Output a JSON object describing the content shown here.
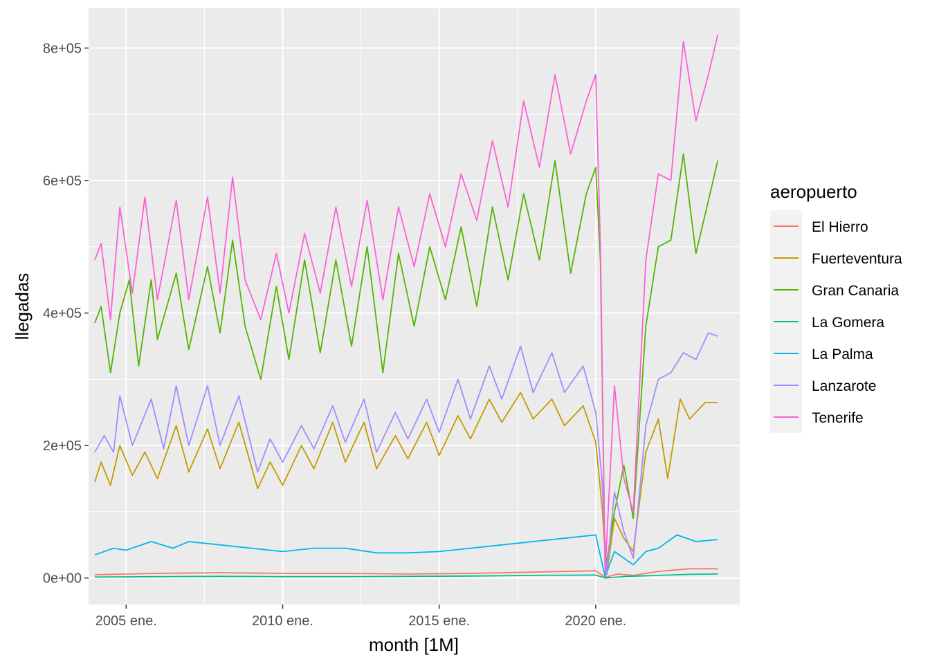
{
  "chart_data": {
    "type": "line",
    "title": "",
    "xlabel": "month [1M]",
    "ylabel": "llegadas",
    "xlim": [
      2003.8,
      2024.6
    ],
    "ylim": [
      -40000,
      860000
    ],
    "x_ticks": [
      {
        "value": 2005.0,
        "label": "2005 ene."
      },
      {
        "value": 2010.0,
        "label": "2010 ene."
      },
      {
        "value": 2015.0,
        "label": "2015 ene."
      },
      {
        "value": 2020.0,
        "label": "2020 ene."
      }
    ],
    "y_ticks": [
      {
        "value": 0,
        "label": "0e+00"
      },
      {
        "value": 200000,
        "label": "2e+05"
      },
      {
        "value": 400000,
        "label": "4e+05"
      },
      {
        "value": 600000,
        "label": "6e+05"
      },
      {
        "value": 800000,
        "label": "8e+05"
      }
    ],
    "legend": {
      "title": "aeropuerto",
      "position": "right"
    },
    "series": [
      {
        "name": "El Hierro",
        "color": "#F8766D",
        "points": [
          [
            2004.0,
            5000
          ],
          [
            2006.0,
            7000
          ],
          [
            2008.0,
            8000
          ],
          [
            2010.0,
            7000
          ],
          [
            2012.0,
            7000
          ],
          [
            2014.0,
            6000
          ],
          [
            2016.0,
            7000
          ],
          [
            2018.0,
            9000
          ],
          [
            2020.0,
            11000
          ],
          [
            2020.3,
            1000
          ],
          [
            2020.7,
            6000
          ],
          [
            2021.2,
            4000
          ],
          [
            2022.0,
            10000
          ],
          [
            2023.0,
            14000
          ],
          [
            2023.9,
            14000
          ]
        ]
      },
      {
        "name": "Fuerteventura",
        "color": "#C49A00",
        "points": [
          [
            2004.0,
            145000
          ],
          [
            2004.2,
            175000
          ],
          [
            2004.5,
            140000
          ],
          [
            2004.8,
            200000
          ],
          [
            2005.2,
            155000
          ],
          [
            2005.6,
            190000
          ],
          [
            2006.0,
            150000
          ],
          [
            2006.6,
            230000
          ],
          [
            2007.0,
            160000
          ],
          [
            2007.6,
            225000
          ],
          [
            2008.0,
            165000
          ],
          [
            2008.6,
            235000
          ],
          [
            2009.2,
            135000
          ],
          [
            2009.6,
            175000
          ],
          [
            2010.0,
            140000
          ],
          [
            2010.6,
            200000
          ],
          [
            2011.0,
            165000
          ],
          [
            2011.6,
            235000
          ],
          [
            2012.0,
            175000
          ],
          [
            2012.6,
            235000
          ],
          [
            2013.0,
            165000
          ],
          [
            2013.6,
            215000
          ],
          [
            2014.0,
            180000
          ],
          [
            2014.6,
            235000
          ],
          [
            2015.0,
            185000
          ],
          [
            2015.6,
            245000
          ],
          [
            2016.0,
            210000
          ],
          [
            2016.6,
            270000
          ],
          [
            2017.0,
            235000
          ],
          [
            2017.6,
            280000
          ],
          [
            2018.0,
            240000
          ],
          [
            2018.6,
            270000
          ],
          [
            2019.0,
            230000
          ],
          [
            2019.6,
            260000
          ],
          [
            2020.0,
            205000
          ],
          [
            2020.2,
            110000
          ],
          [
            2020.35,
            5000
          ],
          [
            2020.6,
            90000
          ],
          [
            2020.9,
            60000
          ],
          [
            2021.2,
            40000
          ],
          [
            2021.6,
            190000
          ],
          [
            2022.0,
            240000
          ],
          [
            2022.3,
            150000
          ],
          [
            2022.7,
            270000
          ],
          [
            2023.0,
            240000
          ],
          [
            2023.5,
            265000
          ],
          [
            2023.9,
            265000
          ]
        ]
      },
      {
        "name": "Gran Canaria",
        "color": "#53B400",
        "points": [
          [
            2004.0,
            385000
          ],
          [
            2004.2,
            410000
          ],
          [
            2004.5,
            310000
          ],
          [
            2004.8,
            400000
          ],
          [
            2005.1,
            450000
          ],
          [
            2005.4,
            320000
          ],
          [
            2005.8,
            450000
          ],
          [
            2006.0,
            360000
          ],
          [
            2006.6,
            460000
          ],
          [
            2007.0,
            345000
          ],
          [
            2007.6,
            470000
          ],
          [
            2008.0,
            370000
          ],
          [
            2008.4,
            510000
          ],
          [
            2008.8,
            380000
          ],
          [
            2009.3,
            300000
          ],
          [
            2009.8,
            440000
          ],
          [
            2010.2,
            330000
          ],
          [
            2010.7,
            480000
          ],
          [
            2011.2,
            340000
          ],
          [
            2011.7,
            480000
          ],
          [
            2012.2,
            350000
          ],
          [
            2012.7,
            500000
          ],
          [
            2013.2,
            310000
          ],
          [
            2013.7,
            490000
          ],
          [
            2014.2,
            380000
          ],
          [
            2014.7,
            500000
          ],
          [
            2015.2,
            420000
          ],
          [
            2015.7,
            530000
          ],
          [
            2016.2,
            410000
          ],
          [
            2016.7,
            560000
          ],
          [
            2017.2,
            450000
          ],
          [
            2017.7,
            580000
          ],
          [
            2018.2,
            480000
          ],
          [
            2018.7,
            630000
          ],
          [
            2019.2,
            460000
          ],
          [
            2019.7,
            580000
          ],
          [
            2020.0,
            620000
          ],
          [
            2020.15,
            480000
          ],
          [
            2020.3,
            10000
          ],
          [
            2020.6,
            100000
          ],
          [
            2020.9,
            170000
          ],
          [
            2021.2,
            90000
          ],
          [
            2021.6,
            380000
          ],
          [
            2022.0,
            500000
          ],
          [
            2022.4,
            510000
          ],
          [
            2022.8,
            640000
          ],
          [
            2023.2,
            490000
          ],
          [
            2023.6,
            570000
          ],
          [
            2023.9,
            630000
          ]
        ]
      },
      {
        "name": "La Gomera",
        "color": "#00C094",
        "points": [
          [
            2004.0,
            1500
          ],
          [
            2006.0,
            2000
          ],
          [
            2008.0,
            2500
          ],
          [
            2010.0,
            2000
          ],
          [
            2012.0,
            2000
          ],
          [
            2014.0,
            2500
          ],
          [
            2016.0,
            3000
          ],
          [
            2018.0,
            4000
          ],
          [
            2020.0,
            4500
          ],
          [
            2020.3,
            0
          ],
          [
            2021.0,
            2500
          ],
          [
            2022.0,
            4000
          ],
          [
            2023.0,
            5500
          ],
          [
            2023.9,
            6000
          ]
        ]
      },
      {
        "name": "La Palma",
        "color": "#00B6EB",
        "points": [
          [
            2004.0,
            35000
          ],
          [
            2004.6,
            45000
          ],
          [
            2005.0,
            42000
          ],
          [
            2005.8,
            55000
          ],
          [
            2006.5,
            45000
          ],
          [
            2007.0,
            55000
          ],
          [
            2008.0,
            50000
          ],
          [
            2009.0,
            45000
          ],
          [
            2010.0,
            40000
          ],
          [
            2011.0,
            45000
          ],
          [
            2012.0,
            45000
          ],
          [
            2013.0,
            38000
          ],
          [
            2014.0,
            38000
          ],
          [
            2015.0,
            40000
          ],
          [
            2016.0,
            45000
          ],
          [
            2017.0,
            50000
          ],
          [
            2018.0,
            55000
          ],
          [
            2019.0,
            60000
          ],
          [
            2020.0,
            65000
          ],
          [
            2020.3,
            2000
          ],
          [
            2020.6,
            40000
          ],
          [
            2021.2,
            20000
          ],
          [
            2021.6,
            40000
          ],
          [
            2022.0,
            45000
          ],
          [
            2022.6,
            65000
          ],
          [
            2023.2,
            55000
          ],
          [
            2023.9,
            58000
          ]
        ]
      },
      {
        "name": "Lanzarote",
        "color": "#A58AFF",
        "points": [
          [
            2004.0,
            190000
          ],
          [
            2004.3,
            215000
          ],
          [
            2004.6,
            190000
          ],
          [
            2004.8,
            275000
          ],
          [
            2005.2,
            200000
          ],
          [
            2005.8,
            270000
          ],
          [
            2006.2,
            195000
          ],
          [
            2006.6,
            290000
          ],
          [
            2007.0,
            200000
          ],
          [
            2007.6,
            290000
          ],
          [
            2008.0,
            200000
          ],
          [
            2008.6,
            275000
          ],
          [
            2009.2,
            160000
          ],
          [
            2009.6,
            210000
          ],
          [
            2010.0,
            175000
          ],
          [
            2010.6,
            230000
          ],
          [
            2011.0,
            195000
          ],
          [
            2011.6,
            260000
          ],
          [
            2012.0,
            205000
          ],
          [
            2012.6,
            270000
          ],
          [
            2013.0,
            190000
          ],
          [
            2013.6,
            250000
          ],
          [
            2014.0,
            210000
          ],
          [
            2014.6,
            270000
          ],
          [
            2015.0,
            220000
          ],
          [
            2015.6,
            300000
          ],
          [
            2016.0,
            240000
          ],
          [
            2016.6,
            320000
          ],
          [
            2017.0,
            270000
          ],
          [
            2017.6,
            350000
          ],
          [
            2018.0,
            280000
          ],
          [
            2018.6,
            340000
          ],
          [
            2019.0,
            280000
          ],
          [
            2019.6,
            320000
          ],
          [
            2020.0,
            250000
          ],
          [
            2020.2,
            150000
          ],
          [
            2020.35,
            8000
          ],
          [
            2020.6,
            130000
          ],
          [
            2020.9,
            70000
          ],
          [
            2021.2,
            30000
          ],
          [
            2021.6,
            230000
          ],
          [
            2022.0,
            300000
          ],
          [
            2022.4,
            310000
          ],
          [
            2022.8,
            340000
          ],
          [
            2023.2,
            330000
          ],
          [
            2023.6,
            370000
          ],
          [
            2023.9,
            365000
          ]
        ]
      },
      {
        "name": "Tenerife",
        "color": "#FB61D7",
        "points": [
          [
            2004.0,
            480000
          ],
          [
            2004.2,
            505000
          ],
          [
            2004.5,
            390000
          ],
          [
            2004.8,
            560000
          ],
          [
            2005.2,
            430000
          ],
          [
            2005.6,
            575000
          ],
          [
            2006.0,
            420000
          ],
          [
            2006.6,
            570000
          ],
          [
            2007.0,
            420000
          ],
          [
            2007.6,
            575000
          ],
          [
            2008.0,
            430000
          ],
          [
            2008.4,
            605000
          ],
          [
            2008.8,
            450000
          ],
          [
            2009.3,
            390000
          ],
          [
            2009.8,
            490000
          ],
          [
            2010.2,
            400000
          ],
          [
            2010.7,
            520000
          ],
          [
            2011.2,
            430000
          ],
          [
            2011.7,
            560000
          ],
          [
            2012.2,
            440000
          ],
          [
            2012.7,
            570000
          ],
          [
            2013.2,
            420000
          ],
          [
            2013.7,
            560000
          ],
          [
            2014.2,
            470000
          ],
          [
            2014.7,
            580000
          ],
          [
            2015.2,
            500000
          ],
          [
            2015.7,
            610000
          ],
          [
            2016.2,
            540000
          ],
          [
            2016.7,
            660000
          ],
          [
            2017.2,
            560000
          ],
          [
            2017.7,
            720000
          ],
          [
            2018.2,
            620000
          ],
          [
            2018.7,
            760000
          ],
          [
            2019.2,
            640000
          ],
          [
            2019.7,
            720000
          ],
          [
            2020.0,
            760000
          ],
          [
            2020.15,
            500000
          ],
          [
            2020.3,
            8000
          ],
          [
            2020.6,
            290000
          ],
          [
            2020.9,
            150000
          ],
          [
            2021.2,
            100000
          ],
          [
            2021.6,
            480000
          ],
          [
            2022.0,
            610000
          ],
          [
            2022.4,
            600000
          ],
          [
            2022.8,
            810000
          ],
          [
            2023.2,
            690000
          ],
          [
            2023.6,
            760000
          ],
          [
            2023.9,
            820000
          ]
        ]
      }
    ]
  }
}
